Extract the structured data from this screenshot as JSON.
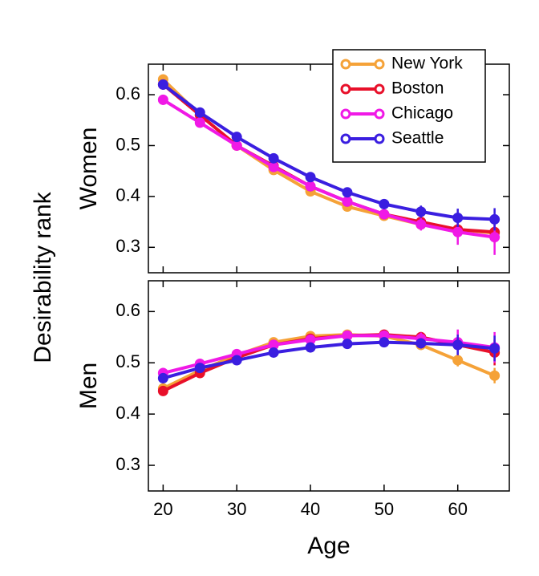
{
  "y_label": "Desirability rank",
  "chart_data": [
    {
      "type": "line",
      "ylabel": "Women",
      "legend": "upper right",
      "x": [
        20,
        25,
        30,
        35,
        40,
        45,
        50,
        55,
        60,
        65
      ],
      "xlim": [
        18,
        67
      ],
      "ylim": [
        0.25,
        0.66
      ],
      "xticks": [
        20,
        30,
        40,
        50,
        60
      ],
      "yticks": [
        0.3,
        0.4,
        0.5,
        0.6
      ],
      "series": [
        {
          "name": "New York",
          "color": "#f5a238",
          "values": [
            0.63,
            0.56,
            0.5,
            0.452,
            0.41,
            0.38,
            0.362,
            0.345,
            0.335,
            0.328
          ],
          "errors": [
            0.008,
            0.006,
            0.006,
            0.006,
            0.006,
            0.006,
            0.006,
            0.01,
            0.015,
            0.02
          ]
        },
        {
          "name": "Boston",
          "color": "#e8102a",
          "values": [
            0.62,
            0.56,
            0.5,
            0.46,
            0.42,
            0.39,
            0.365,
            0.35,
            0.335,
            0.33
          ],
          "errors": [
            0.008,
            0.006,
            0.006,
            0.006,
            0.006,
            0.006,
            0.008,
            0.01,
            0.015,
            0.02
          ]
        },
        {
          "name": "Chicago",
          "color": "#f019e6",
          "values": [
            0.59,
            0.545,
            0.5,
            0.458,
            0.42,
            0.39,
            0.365,
            0.345,
            0.33,
            0.32
          ],
          "errors": [
            0.01,
            0.006,
            0.006,
            0.006,
            0.006,
            0.006,
            0.008,
            0.012,
            0.025,
            0.035
          ]
        },
        {
          "name": "Seattle",
          "color": "#3a1ee0",
          "values": [
            0.62,
            0.565,
            0.517,
            0.475,
            0.438,
            0.408,
            0.385,
            0.37,
            0.358,
            0.355
          ],
          "errors": [
            0.01,
            0.006,
            0.006,
            0.006,
            0.006,
            0.006,
            0.01,
            0.012,
            0.018,
            0.022
          ]
        }
      ]
    },
    {
      "type": "line",
      "ylabel": "Men",
      "xlabel": "Age",
      "x": [
        20,
        25,
        30,
        35,
        40,
        45,
        50,
        55,
        60,
        65
      ],
      "xlim": [
        18,
        67
      ],
      "ylim": [
        0.25,
        0.66
      ],
      "xticks": [
        20,
        30,
        40,
        50,
        60
      ],
      "yticks": [
        0.3,
        0.4,
        0.5,
        0.6
      ],
      "series": [
        {
          "color": "#f5a238",
          "values": [
            0.45,
            0.485,
            0.515,
            0.54,
            0.552,
            0.555,
            0.552,
            0.535,
            0.505,
            0.475
          ],
          "errors": [
            0.01,
            0.006,
            0.006,
            0.006,
            0.006,
            0.006,
            0.008,
            0.01,
            0.012,
            0.015
          ]
        },
        {
          "color": "#e8102a",
          "values": [
            0.445,
            0.48,
            0.51,
            0.535,
            0.547,
            0.553,
            0.555,
            0.55,
            0.535,
            0.52
          ],
          "errors": [
            0.006,
            0.006,
            0.006,
            0.006,
            0.006,
            0.006,
            0.008,
            0.01,
            0.02,
            0.025
          ]
        },
        {
          "color": "#f019e6",
          "values": [
            0.48,
            0.498,
            0.517,
            0.535,
            0.545,
            0.553,
            0.553,
            0.547,
            0.54,
            0.53
          ],
          "errors": [
            0.01,
            0.006,
            0.006,
            0.006,
            0.006,
            0.006,
            0.008,
            0.012,
            0.025,
            0.03
          ]
        },
        {
          "color": "#3a1ee0",
          "values": [
            0.47,
            0.49,
            0.505,
            0.52,
            0.53,
            0.537,
            0.54,
            0.538,
            0.535,
            0.528
          ],
          "errors": [
            0.01,
            0.006,
            0.006,
            0.006,
            0.006,
            0.006,
            0.008,
            0.01,
            0.02,
            0.025
          ]
        }
      ]
    }
  ]
}
